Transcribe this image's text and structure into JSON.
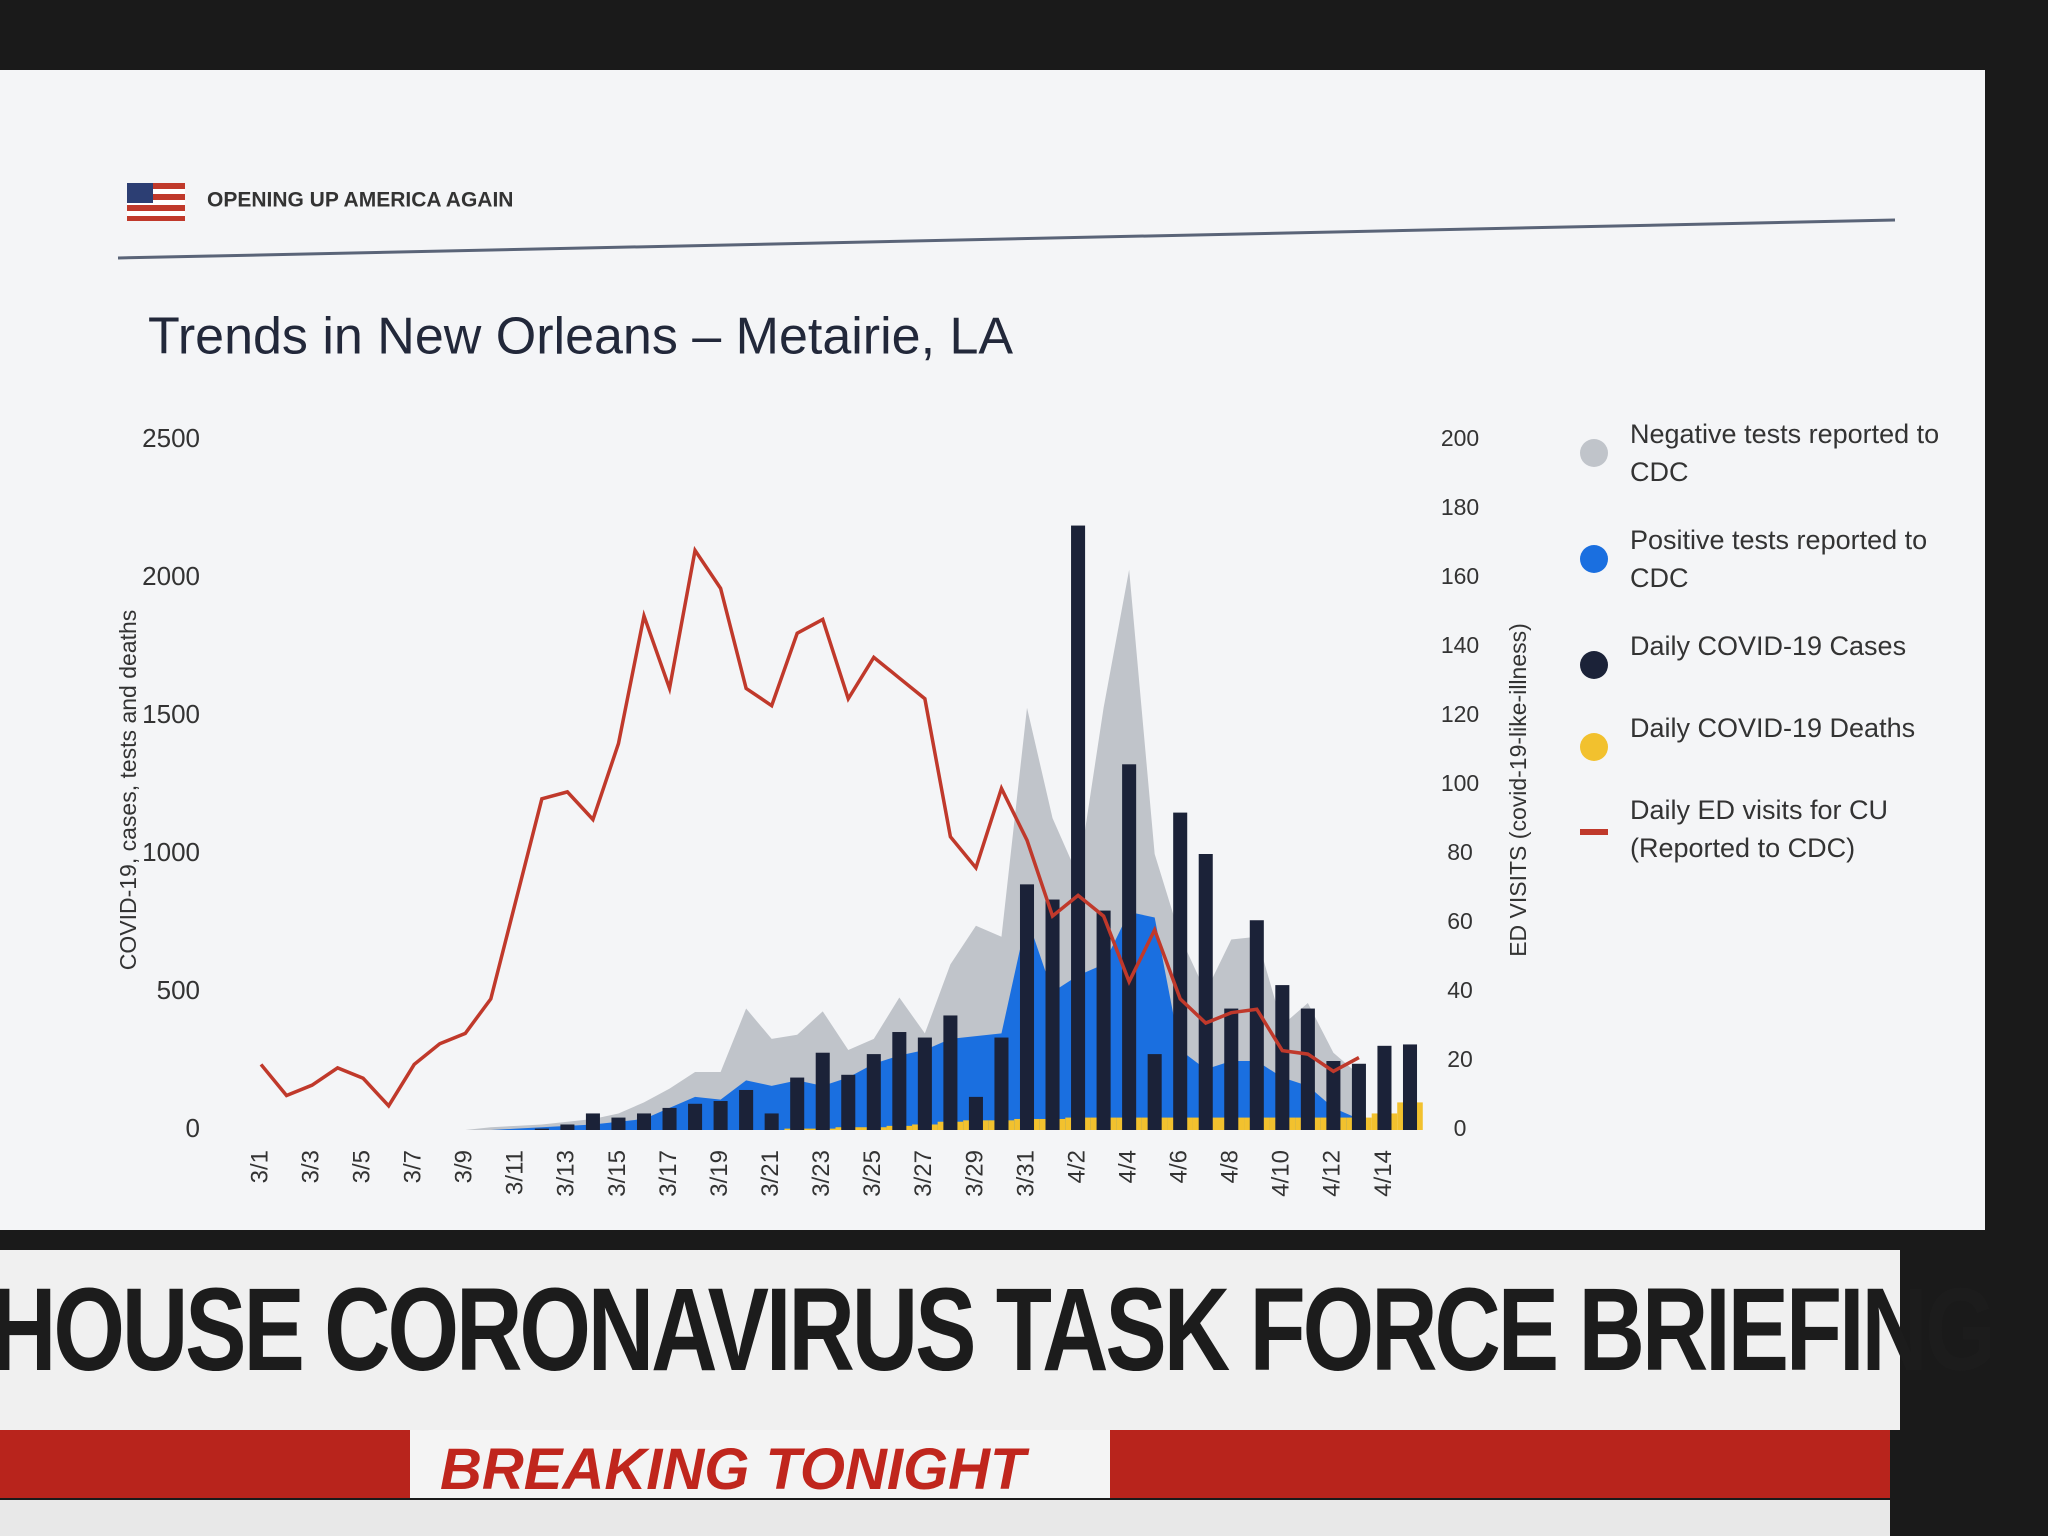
{
  "header": {
    "title": "OPENING UP AMERICA AGAIN"
  },
  "banner": {
    "title": "HOUSE CORONAVIRUS TASK FORCE BRIEFING",
    "subtitle": "BREAKING TONIGHT"
  },
  "chart_data": {
    "type": "combo",
    "title": "Trends in New Orleans – Metairie, LA",
    "y_label": "COVID-19, cases, tests and deaths",
    "y2_label": "ED VISITS (covid-19-like-illness)",
    "categories": [
      "3/1",
      null,
      "3/3",
      null,
      "3/5",
      null,
      "3/7",
      null,
      "3/9",
      null,
      "3/11",
      null,
      "3/13",
      null,
      "3/15",
      null,
      "3/17",
      null,
      "3/19",
      null,
      "3/21",
      null,
      "3/23",
      null,
      "3/25",
      null,
      "3/27",
      null,
      "3/29",
      null,
      "3/31",
      null,
      "4/2",
      null,
      "4/4",
      null,
      "4/6",
      null,
      "4/8",
      null,
      "4/10",
      null,
      "4/12",
      null,
      "4/14",
      null
    ],
    "ylim": [
      0,
      2500
    ],
    "yticks": [
      0,
      500,
      1000,
      1500,
      2000,
      2500
    ],
    "y2lim": [
      0,
      200
    ],
    "y2ticks": [
      0,
      20,
      40,
      60,
      80,
      100,
      120,
      140,
      160,
      180,
      200
    ],
    "series": [
      {
        "name": "Negative tests reported to CDC",
        "type": "area",
        "color": "#c0c4ca",
        "values": [
          0,
          0,
          0,
          0,
          0,
          0,
          0,
          0,
          0,
          10,
          15,
          20,
          30,
          40,
          60,
          100,
          150,
          210,
          210,
          440,
          330,
          345,
          430,
          290,
          330,
          480,
          350,
          600,
          740,
          700,
          1530,
          1130,
          920,
          1530,
          2030,
          1000,
          700,
          500,
          690,
          700,
          380,
          460,
          280,
          200,
          null,
          null
        ]
      },
      {
        "name": "Positive tests reported to CDC",
        "type": "area",
        "color": "#1a6fe0",
        "values": [
          0,
          0,
          0,
          0,
          0,
          0,
          0,
          0,
          0,
          0,
          5,
          10,
          15,
          20,
          30,
          40,
          80,
          120,
          110,
          180,
          160,
          180,
          160,
          190,
          240,
          270,
          290,
          330,
          340,
          350,
          770,
          500,
          560,
          600,
          790,
          770,
          290,
          220,
          250,
          250,
          190,
          160,
          80,
          40,
          null,
          null
        ]
      },
      {
        "name": "Daily COVID-19 Deaths",
        "type": "bar",
        "color": "#f2c12e",
        "values": [
          0,
          0,
          0,
          0,
          0,
          0,
          0,
          0,
          0,
          0,
          0,
          0,
          0,
          0,
          0,
          0,
          0,
          0,
          0,
          0,
          0,
          5,
          5,
          10,
          10,
          15,
          20,
          30,
          35,
          35,
          40,
          40,
          45,
          45,
          45,
          45,
          45,
          45,
          45,
          45,
          45,
          45,
          45,
          45,
          60,
          100
        ]
      },
      {
        "name": "Daily COVID-19 Cases",
        "type": "bar",
        "color": "#1b2238",
        "values": [
          0,
          0,
          0,
          0,
          0,
          0,
          0,
          0,
          0,
          0,
          0,
          5,
          20,
          60,
          45,
          60,
          80,
          95,
          105,
          145,
          60,
          190,
          280,
          200,
          275,
          355,
          335,
          415,
          120,
          335,
          890,
          835,
          2190,
          795,
          1325,
          275,
          1150,
          1000,
          440,
          760,
          525,
          440,
          250,
          240,
          305,
          310
        ]
      },
      {
        "name": "Daily ED visits for CU (Reported to CDC)",
        "type": "line",
        "axis": "y2",
        "color": "#c0392b",
        "values": [
          19,
          10,
          13,
          18,
          15,
          7,
          19,
          25,
          28,
          38,
          67,
          96,
          98,
          90,
          112,
          149,
          128,
          168,
          157,
          128,
          123,
          144,
          148,
          125,
          137,
          131,
          125,
          85,
          76,
          99,
          84,
          62,
          68,
          62,
          43,
          58,
          38,
          31,
          34,
          35,
          23,
          22,
          17,
          21,
          null,
          null
        ]
      }
    ],
    "legend_order": [
      0,
      1,
      3,
      2,
      4
    ]
  }
}
